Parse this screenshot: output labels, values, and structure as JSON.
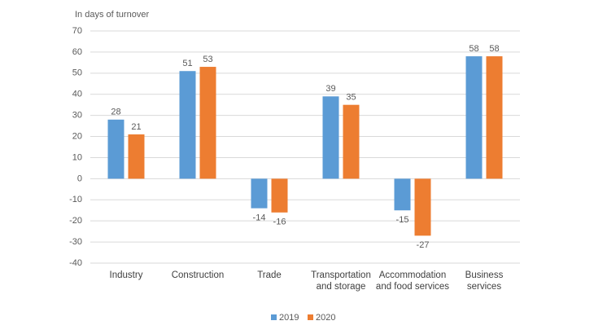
{
  "chart_data": {
    "type": "bar",
    "y_label": "In days of turnover",
    "categories": [
      "Industry",
      "Construction",
      "Trade",
      "Transportation and storage",
      "Accommodation and food services",
      "Business services"
    ],
    "series": [
      {
        "name": "2019",
        "color": "#5b9bd5",
        "values": [
          28,
          51,
          -14,
          39,
          -15,
          58
        ]
      },
      {
        "name": "2020",
        "color": "#ed7d31",
        "values": [
          21,
          53,
          -16,
          35,
          -27,
          58
        ]
      }
    ],
    "ylim": [
      -40,
      70
    ],
    "yticks": [
      -40,
      -30,
      -20,
      -10,
      0,
      10,
      20,
      30,
      40,
      50,
      60,
      70
    ],
    "grid": true,
    "legend": "bottom"
  }
}
